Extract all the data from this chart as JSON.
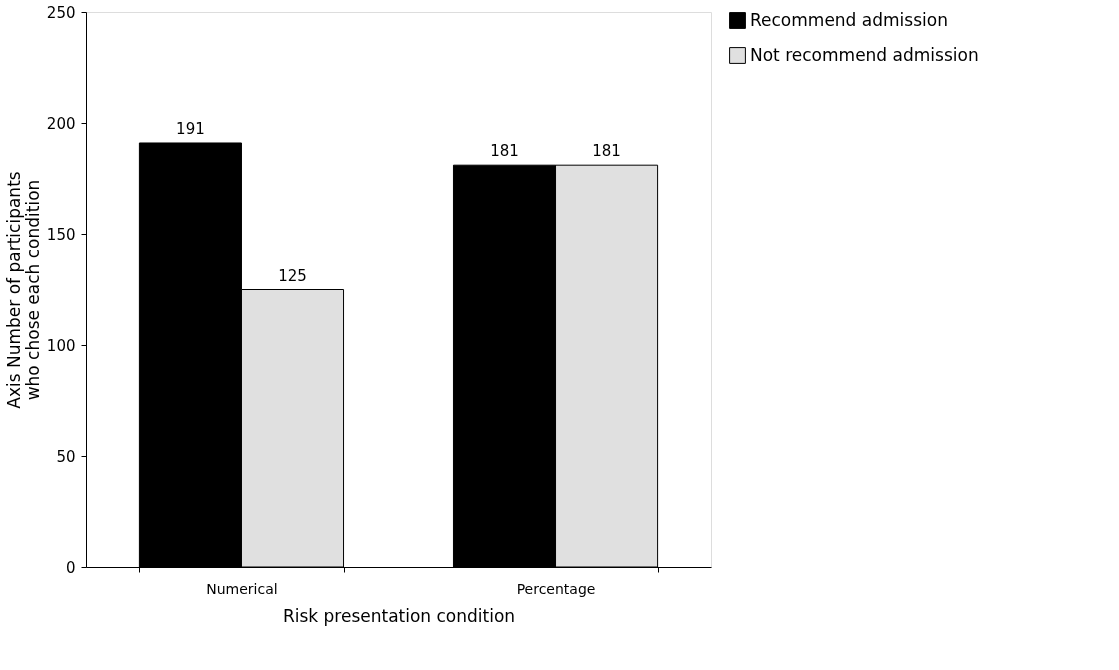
{
  "chart_data": {
    "type": "bar",
    "xlabel": "Risk presentation condition",
    "ylabel": "Axis Number of participants who chose each condition",
    "categories": [
      "Numerical",
      "Percentage"
    ],
    "series": [
      {
        "name": "Recommend admission",
        "color": "#000000",
        "values": [
          191,
          181
        ]
      },
      {
        "name": "Not recommend admission",
        "color": "#e0e0e0",
        "values": [
          125,
          181
        ]
      }
    ],
    "ylim": [
      0,
      250
    ],
    "yticks": [
      0,
      50,
      100,
      150,
      200,
      250
    ],
    "grid": false,
    "legend": "right",
    "data_labels": true
  }
}
